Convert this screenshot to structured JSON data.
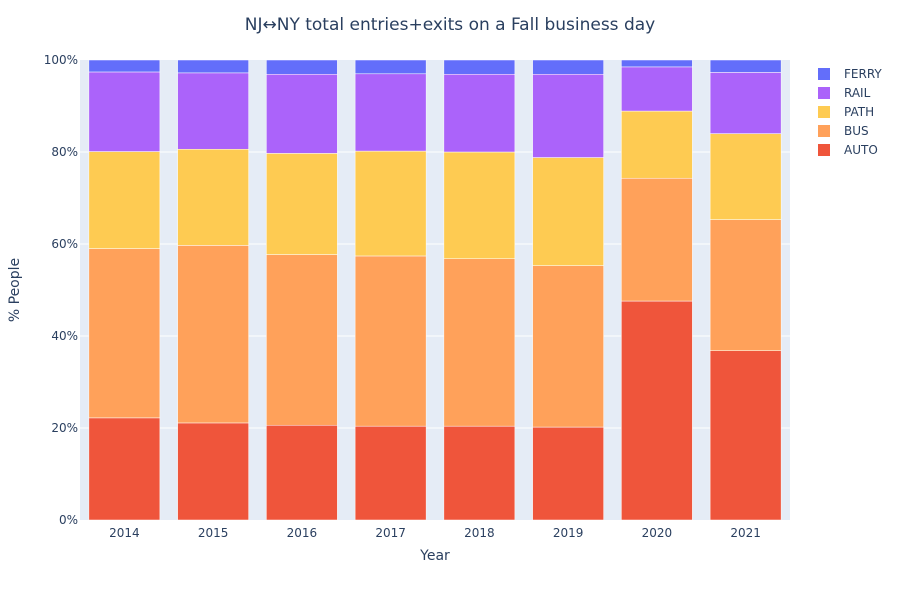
{
  "chart_data": {
    "type": "bar",
    "barmode": "stack",
    "title": "NJ↔NY total entries+exits on a Fall business day",
    "xlabel": "Year",
    "ylabel": "% People",
    "ylim": [
      0,
      100
    ],
    "y_tick_values": [
      0,
      20,
      40,
      60,
      80,
      100
    ],
    "y_tick_labels": [
      "0%",
      "20%",
      "40%",
      "60%",
      "80%",
      "100%"
    ],
    "categories": [
      "2014",
      "2015",
      "2016",
      "2017",
      "2018",
      "2019",
      "2020",
      "2021"
    ],
    "legend_position": "top-right",
    "grid": true,
    "plot_background": "#e5ecf6",
    "series": [
      {
        "name": "AUTO",
        "color": "#ef553b",
        "values": [
          22.2,
          21.1,
          20.6,
          20.4,
          20.4,
          20.2,
          47.6,
          36.8
        ]
      },
      {
        "name": "BUS",
        "color": "#ffa15a",
        "values": [
          36.8,
          38.6,
          37.1,
          37.0,
          36.4,
          35.1,
          26.7,
          28.5
        ]
      },
      {
        "name": "PATH",
        "color": "#fecb52",
        "values": [
          21.1,
          20.9,
          22.0,
          22.8,
          23.2,
          23.5,
          14.6,
          18.7
        ]
      },
      {
        "name": "RAIL",
        "color": "#ab63fa",
        "values": [
          17.3,
          16.6,
          17.2,
          16.8,
          16.9,
          18.1,
          9.6,
          13.3
        ]
      },
      {
        "name": "FERRY",
        "color": "#636efa",
        "values": [
          2.6,
          2.8,
          3.1,
          3.0,
          3.1,
          3.1,
          1.5,
          2.7
        ]
      }
    ],
    "legend_order": [
      "FERRY",
      "RAIL",
      "PATH",
      "BUS",
      "AUTO"
    ]
  }
}
